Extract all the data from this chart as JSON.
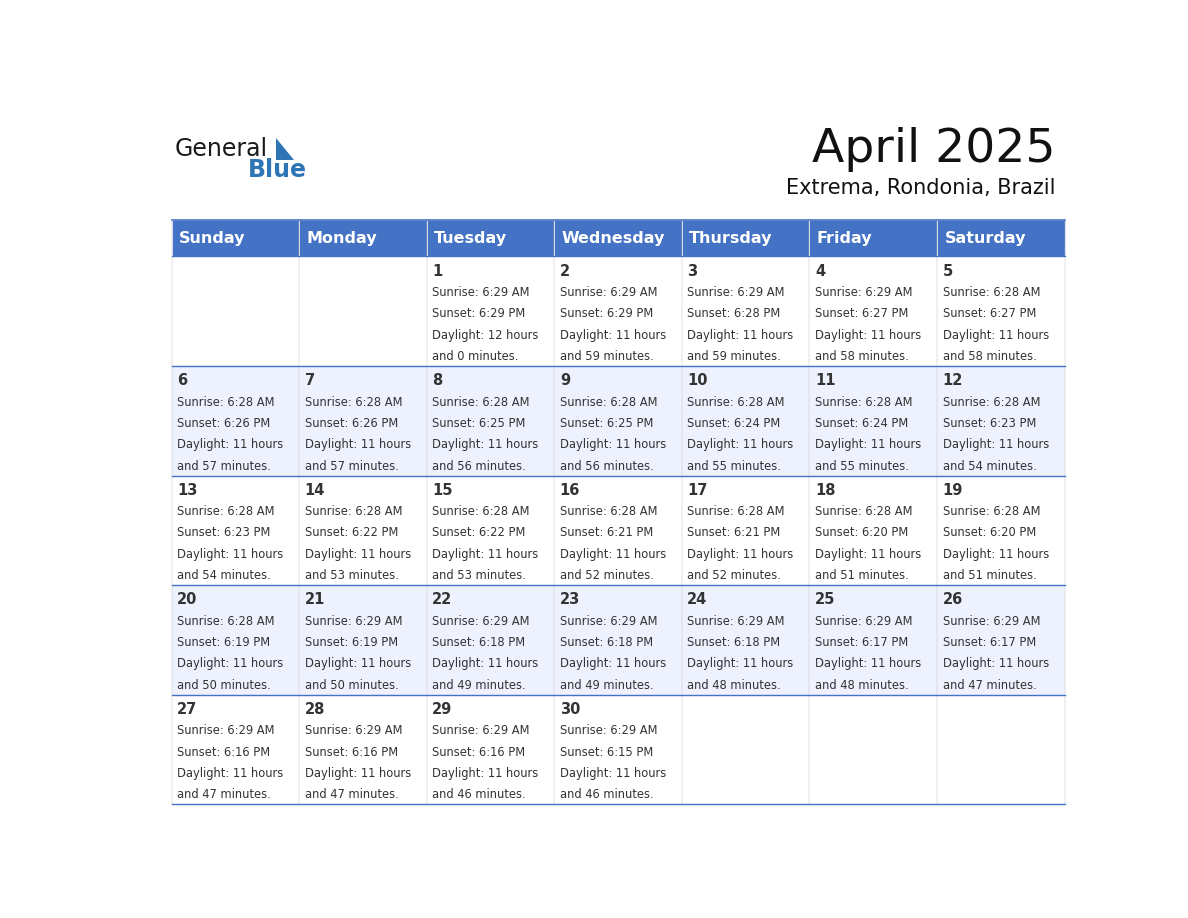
{
  "title": "April 2025",
  "subtitle": "Extrema, Rondonia, Brazil",
  "days_of_week": [
    "Sunday",
    "Monday",
    "Tuesday",
    "Wednesday",
    "Thursday",
    "Friday",
    "Saturday"
  ],
  "header_bg": "#4472C4",
  "header_text": "#FFFFFF",
  "row_bg_odd": "#FFFFFF",
  "row_bg_even": "#EEF2FF",
  "border_color": "#4472C4",
  "text_color": "#333333",
  "logo_general_color": "#1a1a1a",
  "logo_blue_color": "#2E75B6",
  "calendar_data": [
    [
      null,
      null,
      {
        "day": 1,
        "sunrise": "6:29 AM",
        "sunset": "6:29 PM",
        "daylight_hours": 12,
        "daylight_minutes": 0
      },
      {
        "day": 2,
        "sunrise": "6:29 AM",
        "sunset": "6:29 PM",
        "daylight_hours": 11,
        "daylight_minutes": 59
      },
      {
        "day": 3,
        "sunrise": "6:29 AM",
        "sunset": "6:28 PM",
        "daylight_hours": 11,
        "daylight_minutes": 59
      },
      {
        "day": 4,
        "sunrise": "6:29 AM",
        "sunset": "6:27 PM",
        "daylight_hours": 11,
        "daylight_minutes": 58
      },
      {
        "day": 5,
        "sunrise": "6:28 AM",
        "sunset": "6:27 PM",
        "daylight_hours": 11,
        "daylight_minutes": 58
      }
    ],
    [
      {
        "day": 6,
        "sunrise": "6:28 AM",
        "sunset": "6:26 PM",
        "daylight_hours": 11,
        "daylight_minutes": 57
      },
      {
        "day": 7,
        "sunrise": "6:28 AM",
        "sunset": "6:26 PM",
        "daylight_hours": 11,
        "daylight_minutes": 57
      },
      {
        "day": 8,
        "sunrise": "6:28 AM",
        "sunset": "6:25 PM",
        "daylight_hours": 11,
        "daylight_minutes": 56
      },
      {
        "day": 9,
        "sunrise": "6:28 AM",
        "sunset": "6:25 PM",
        "daylight_hours": 11,
        "daylight_minutes": 56
      },
      {
        "day": 10,
        "sunrise": "6:28 AM",
        "sunset": "6:24 PM",
        "daylight_hours": 11,
        "daylight_minutes": 55
      },
      {
        "day": 11,
        "sunrise": "6:28 AM",
        "sunset": "6:24 PM",
        "daylight_hours": 11,
        "daylight_minutes": 55
      },
      {
        "day": 12,
        "sunrise": "6:28 AM",
        "sunset": "6:23 PM",
        "daylight_hours": 11,
        "daylight_minutes": 54
      }
    ],
    [
      {
        "day": 13,
        "sunrise": "6:28 AM",
        "sunset": "6:23 PM",
        "daylight_hours": 11,
        "daylight_minutes": 54
      },
      {
        "day": 14,
        "sunrise": "6:28 AM",
        "sunset": "6:22 PM",
        "daylight_hours": 11,
        "daylight_minutes": 53
      },
      {
        "day": 15,
        "sunrise": "6:28 AM",
        "sunset": "6:22 PM",
        "daylight_hours": 11,
        "daylight_minutes": 53
      },
      {
        "day": 16,
        "sunrise": "6:28 AM",
        "sunset": "6:21 PM",
        "daylight_hours": 11,
        "daylight_minutes": 52
      },
      {
        "day": 17,
        "sunrise": "6:28 AM",
        "sunset": "6:21 PM",
        "daylight_hours": 11,
        "daylight_minutes": 52
      },
      {
        "day": 18,
        "sunrise": "6:28 AM",
        "sunset": "6:20 PM",
        "daylight_hours": 11,
        "daylight_minutes": 51
      },
      {
        "day": 19,
        "sunrise": "6:28 AM",
        "sunset": "6:20 PM",
        "daylight_hours": 11,
        "daylight_minutes": 51
      }
    ],
    [
      {
        "day": 20,
        "sunrise": "6:28 AM",
        "sunset": "6:19 PM",
        "daylight_hours": 11,
        "daylight_minutes": 50
      },
      {
        "day": 21,
        "sunrise": "6:29 AM",
        "sunset": "6:19 PM",
        "daylight_hours": 11,
        "daylight_minutes": 50
      },
      {
        "day": 22,
        "sunrise": "6:29 AM",
        "sunset": "6:18 PM",
        "daylight_hours": 11,
        "daylight_minutes": 49
      },
      {
        "day": 23,
        "sunrise": "6:29 AM",
        "sunset": "6:18 PM",
        "daylight_hours": 11,
        "daylight_minutes": 49
      },
      {
        "day": 24,
        "sunrise": "6:29 AM",
        "sunset": "6:18 PM",
        "daylight_hours": 11,
        "daylight_minutes": 48
      },
      {
        "day": 25,
        "sunrise": "6:29 AM",
        "sunset": "6:17 PM",
        "daylight_hours": 11,
        "daylight_minutes": 48
      },
      {
        "day": 26,
        "sunrise": "6:29 AM",
        "sunset": "6:17 PM",
        "daylight_hours": 11,
        "daylight_minutes": 47
      }
    ],
    [
      {
        "day": 27,
        "sunrise": "6:29 AM",
        "sunset": "6:16 PM",
        "daylight_hours": 11,
        "daylight_minutes": 47
      },
      {
        "day": 28,
        "sunrise": "6:29 AM",
        "sunset": "6:16 PM",
        "daylight_hours": 11,
        "daylight_minutes": 47
      },
      {
        "day": 29,
        "sunrise": "6:29 AM",
        "sunset": "6:16 PM",
        "daylight_hours": 11,
        "daylight_minutes": 46
      },
      {
        "day": 30,
        "sunrise": "6:29 AM",
        "sunset": "6:15 PM",
        "daylight_hours": 11,
        "daylight_minutes": 46
      },
      null,
      null,
      null
    ]
  ],
  "num_weeks": 5,
  "num_days": 7
}
